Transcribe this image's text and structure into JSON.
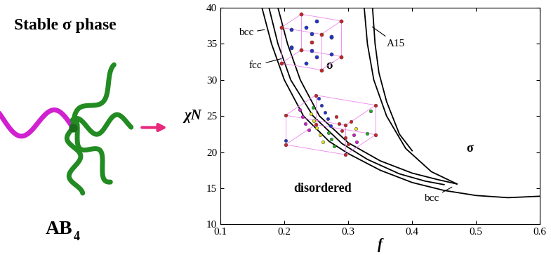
{
  "chart_data": {
    "type": "line",
    "xlabel": "f",
    "ylabel": "χN",
    "xlim": [
      0.1,
      0.6
    ],
    "ylim": [
      10,
      40
    ],
    "xticks": [
      0.1,
      0.2,
      0.3,
      0.4,
      0.5,
      0.6
    ],
    "yticks": [
      10,
      15,
      20,
      25,
      30,
      35,
      40
    ],
    "series": [
      {
        "color": "#000000",
        "x": [
          0.165,
          0.18,
          0.2,
          0.23,
          0.27,
          0.3,
          0.35,
          0.4,
          0.45,
          0.5,
          0.55,
          0.6
        ],
        "values": [
          40,
          35,
          30,
          25,
          21.5,
          19.8,
          17.5,
          15.8,
          14.7,
          14.0,
          13.7,
          13.9
        ]
      },
      {
        "color": "#000000",
        "x": [
          0.176,
          0.19,
          0.21,
          0.245,
          0.29,
          0.33,
          0.38,
          0.42,
          0.45
        ],
        "values": [
          40,
          35,
          30,
          25,
          21.2,
          19.0,
          17.0,
          16.0,
          15.5
        ]
      },
      {
        "color": "#000000",
        "x": [
          0.19,
          0.205,
          0.225,
          0.255,
          0.3,
          0.35,
          0.4,
          0.44,
          0.47
        ],
        "values": [
          40,
          35,
          30,
          25,
          21.3,
          18.8,
          17.1,
          16.2,
          15.6
        ]
      },
      {
        "color": "#000000",
        "x": [
          0.325,
          0.33,
          0.34,
          0.36,
          0.39,
          0.43,
          0.47
        ],
        "values": [
          40,
          35,
          30,
          25,
          20.5,
          17.3,
          15.6
        ]
      },
      {
        "color": "#000000",
        "x": [
          0.338,
          0.342,
          0.348,
          0.36,
          0.38,
          0.4
        ],
        "values": [
          40,
          35,
          31,
          27,
          22.5,
          20.2
        ]
      }
    ],
    "annotations": [
      {
        "text": "bcc",
        "x": 0.14,
        "y": 36.5,
        "arrow_to": [
          0.172,
          37.0
        ]
      },
      {
        "text": "fcc",
        "x": 0.155,
        "y": 32.0,
        "arrow_to": [
          0.198,
          33.0
        ]
      },
      {
        "text": "σ",
        "x": 0.27,
        "y": 32.0
      },
      {
        "text": "A15",
        "x": 0.375,
        "y": 35.0,
        "arrow_to": [
          0.335,
          37.5
        ]
      },
      {
        "text": "disordered",
        "x": 0.26,
        "y": 15.0
      },
      {
        "text": "bcc",
        "x": 0.43,
        "y": 13.6,
        "arrow_to": [
          0.465,
          15.3
        ]
      },
      {
        "text": "σ",
        "x": 0.49,
        "y": 20.5
      }
    ]
  },
  "left_panel": {
    "title": "Stable σ phase",
    "molecule_label": {
      "text": "AB",
      "subscript": "4"
    }
  }
}
